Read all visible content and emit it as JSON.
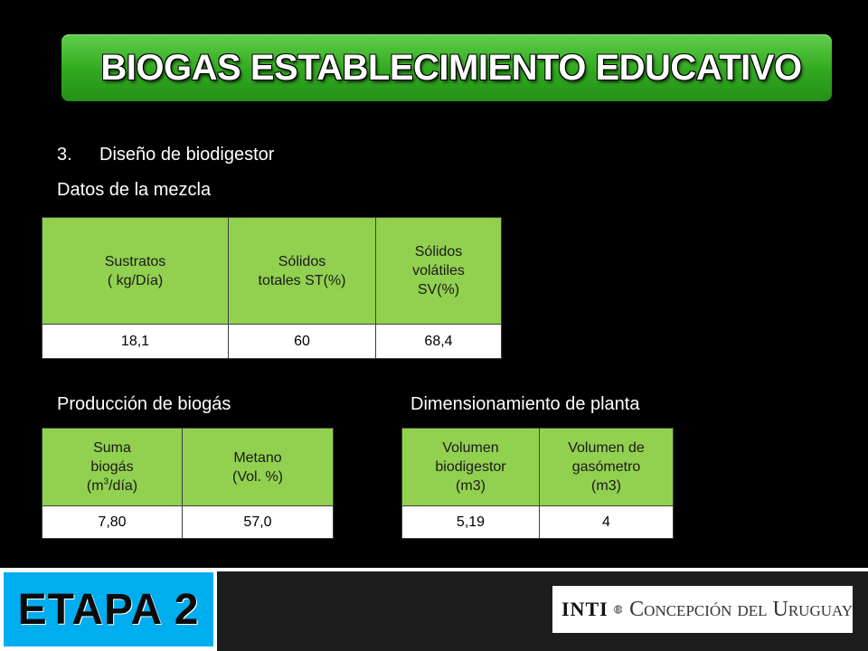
{
  "slide": {
    "title": "BIOGAS ESTABLECIMIENTO EDUCATIVO",
    "list_number": "3.",
    "list_item": "Diseño de biodigestor",
    "mezcla_label": "Datos de la mezcla",
    "produccion_label": "Producción de biogás",
    "dimension_label": "Dimensionamiento de planta"
  },
  "mezcla_table": {
    "headers": [
      {
        "line1": "Sustratos",
        "line2": "( kg/Día)"
      },
      {
        "line1": "Sólidos",
        "line2": "totales ST(%)"
      },
      {
        "line1": "Sólidos",
        "line2": "volátiles",
        "line3": "SV(%)"
      }
    ],
    "values": [
      "18,1",
      "60",
      "68,4"
    ]
  },
  "produccion_table": {
    "headers": [
      {
        "line1": "Suma",
        "line2": "biogás",
        "line3_pre": "(m",
        "line3_sup": "3",
        "line3_post": "/día)"
      },
      {
        "line1": "Metano",
        "line2": "(Vol. %)"
      }
    ],
    "values": [
      "7,80",
      "57,0"
    ]
  },
  "dimension_table": {
    "headers": [
      {
        "line1": "Volumen",
        "line2": "biodigestor",
        "line3": "(m3)"
      },
      {
        "line1": "Volumen de",
        "line2": "gasómetro",
        "line3": "(m3)"
      }
    ],
    "values": [
      "5,19",
      "4"
    ]
  },
  "footer": {
    "stage": "ETAPA 2",
    "logo_brand": "INTI",
    "logo_place": "Concepción del Uruguay",
    "logo_icon": "inti-logo-icon",
    "stage_color": "#00aeef",
    "title_color": "#31a81f",
    "table_header_color": "#92d050"
  }
}
